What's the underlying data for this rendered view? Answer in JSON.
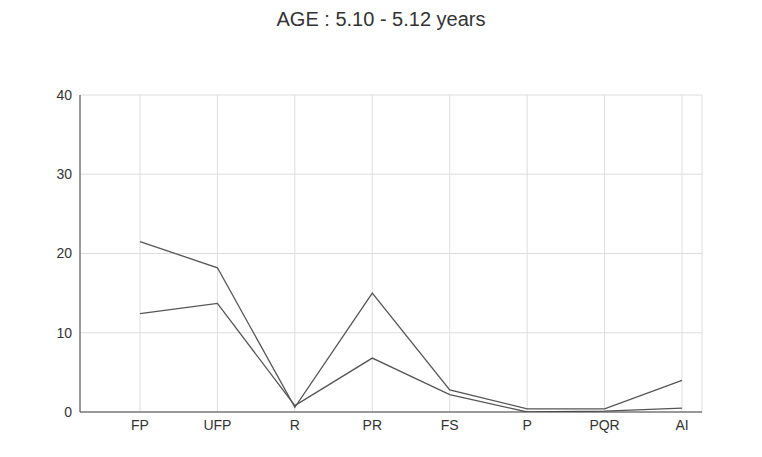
{
  "chart_data": {
    "type": "line",
    "title": "AGE : 5.10 - 5.12 years",
    "categories": [
      "FP",
      "UFP",
      "R",
      "PR",
      "FS",
      "P",
      "PQR",
      "AI"
    ],
    "series": [
      {
        "color": "#555555",
        "values": [
          21.5,
          18.2,
          0.6,
          15,
          2.8,
          0.4,
          0.4,
          4
        ]
      },
      {
        "color": "#555555",
        "values": [
          12.4,
          13.7,
          0.8,
          6.8,
          2.2,
          0,
          0.1,
          0.5
        ]
      }
    ],
    "ylim": [
      0,
      40
    ],
    "yticks": [
      0,
      10,
      20,
      30,
      40
    ],
    "grid": true
  }
}
